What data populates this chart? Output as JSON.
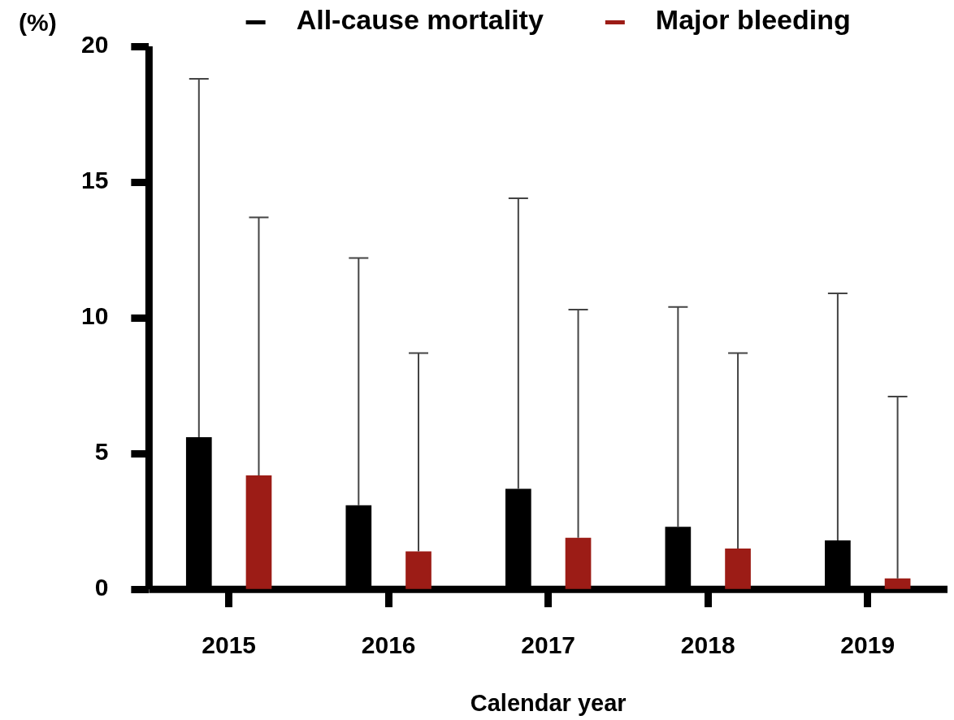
{
  "chart_data": {
    "type": "bar",
    "xlabel": "Calendar year",
    "ylabel": "(%)",
    "categories": [
      "2015",
      "2016",
      "2017",
      "2018",
      "2019"
    ],
    "series": [
      {
        "name": "All-cause mortality",
        "color": "#000000",
        "values": [
          5.6,
          3.1,
          3.7,
          2.3,
          1.8
        ],
        "errors": [
          [
            5.6,
            18.8
          ],
          [
            3.1,
            12.2
          ],
          [
            3.7,
            14.4
          ],
          [
            2.3,
            10.4
          ],
          [
            1.8,
            10.9
          ]
        ]
      },
      {
        "name": "Major bleeding",
        "color": "#9c1c16",
        "values": [
          4.2,
          1.4,
          1.9,
          1.5,
          0.4
        ],
        "errors": [
          [
            4.2,
            13.7
          ],
          [
            1.4,
            8.7
          ],
          [
            1.9,
            10.3
          ],
          [
            1.5,
            8.7
          ],
          [
            0.4,
            7.1
          ]
        ]
      }
    ],
    "ylim": [
      0,
      20
    ],
    "yticks": [
      0,
      5,
      10,
      15,
      20
    ],
    "legend": "top"
  }
}
